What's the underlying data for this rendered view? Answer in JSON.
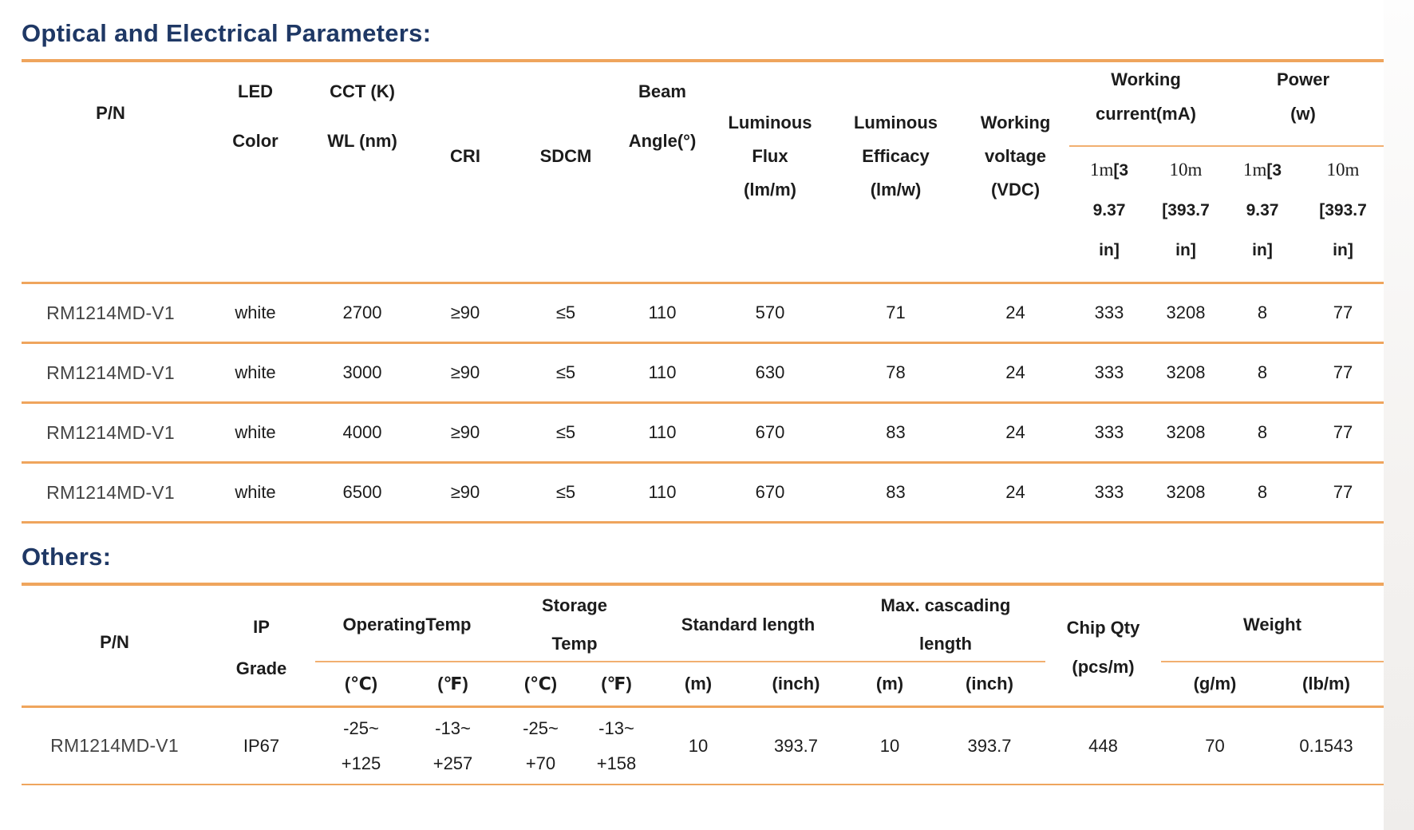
{
  "colors": {
    "accent_orange": "#EFA55D",
    "title_navy": "#1F3865"
  },
  "section1_title": "Optical and Electrical Parameters:",
  "section2_title": "Others:",
  "t1": {
    "head": {
      "pn": "P/N",
      "led": [
        "LED",
        "Color"
      ],
      "cct": [
        "CCT (K)",
        "WL (nm)"
      ],
      "cri": "CRI",
      "sdcm": "SDCM",
      "beam": [
        "Beam",
        "Angle(°)"
      ],
      "flux": [
        "Luminous",
        "Flux",
        "(lm/m)"
      ],
      "eff": [
        "Luminous",
        "Efficacy",
        "(lm/w)"
      ],
      "volt": [
        "Working",
        "voltage",
        "(VDC)"
      ],
      "wc": [
        "Working",
        "current(mA)"
      ],
      "pw": [
        "Power",
        "(w)"
      ],
      "wc_sub": [
        {
          "p": "1m",
          "r": "[3",
          "l2": "9.37",
          "l3": "in]"
        },
        {
          "p": "10m",
          "r": "",
          "l2": "[393.7",
          "l3": "in]"
        }
      ],
      "pw_sub": [
        {
          "p": "1m",
          "r": "[3",
          "l2": "9.37",
          "l3": "in]"
        },
        {
          "p": "10m",
          "r": "",
          "l2": "[393.7",
          "l3": "in]"
        }
      ]
    },
    "rows": [
      [
        "RM1214MD-V1",
        "white",
        "2700",
        "≥90",
        "≤5",
        "110",
        "570",
        "71",
        "24",
        "333",
        "3208",
        "8",
        "77"
      ],
      [
        "RM1214MD-V1",
        "white",
        "3000",
        "≥90",
        "≤5",
        "110",
        "630",
        "78",
        "24",
        "333",
        "3208",
        "8",
        "77"
      ],
      [
        "RM1214MD-V1",
        "white",
        "4000",
        "≥90",
        "≤5",
        "110",
        "670",
        "83",
        "24",
        "333",
        "3208",
        "8",
        "77"
      ],
      [
        "RM1214MD-V1",
        "white",
        "6500",
        "≥90",
        "≤5",
        "110",
        "670",
        "83",
        "24",
        "333",
        "3208",
        "8",
        "77"
      ]
    ]
  },
  "t2": {
    "head": {
      "pn": "P/N",
      "ip": [
        "IP",
        "Grade"
      ],
      "op": "OperatingTemp",
      "st": [
        "Storage",
        "Temp"
      ],
      "sl": "Standard length",
      "mc": [
        "Max. cascading",
        "length"
      ],
      "cq": [
        "Chip Qty",
        "(pcs/m)"
      ],
      "wt": "Weight",
      "sub": [
        "(℃)",
        "(℉)",
        "(℃)",
        "(℉)",
        "(m)",
        "(inch)",
        "(m)",
        "(inch)",
        "(g/m)",
        "(lb/m)"
      ]
    },
    "row": [
      "RM1214MD-V1",
      "IP67",
      [
        "-25~",
        "+125"
      ],
      [
        "-13~",
        "+257"
      ],
      [
        "-25~",
        "+70"
      ],
      [
        "-13~",
        "+158"
      ],
      "10",
      "393.7",
      "10",
      "393.7",
      "448",
      "70",
      "0.1543"
    ]
  }
}
